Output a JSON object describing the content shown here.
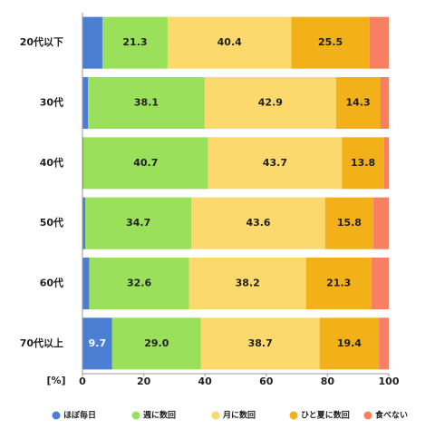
{
  "chart_data": {
    "type": "stacked-barh",
    "categories": [
      "20代以下",
      "30代",
      "40代",
      "50代",
      "60代",
      "70代以上"
    ],
    "series": [
      {
        "name": "ほぼ毎日",
        "color": "#4a7fd4",
        "values": [
          6.5,
          1.8,
          0.3,
          0.9,
          2.2,
          9.7
        ],
        "value_labels": [
          null,
          null,
          null,
          null,
          null,
          "9.7"
        ]
      },
      {
        "name": "週に数回",
        "color": "#9be05a",
        "values": [
          21.3,
          38.1,
          40.7,
          34.7,
          32.6,
          29.0
        ],
        "value_labels": [
          "21.3",
          "38.1",
          "40.7",
          "34.7",
          "32.6",
          "29.0"
        ]
      },
      {
        "name": "月に数回",
        "color": "#fcd96c",
        "values": [
          40.4,
          42.9,
          43.7,
          43.6,
          38.2,
          38.7
        ],
        "value_labels": [
          "40.4",
          "42.9",
          "43.7",
          "43.6",
          "38.2",
          "38.7"
        ]
      },
      {
        "name": "ひと夏に数回",
        "color": "#f2b118",
        "values": [
          25.5,
          14.3,
          13.8,
          15.8,
          21.3,
          19.4
        ],
        "value_labels": [
          "25.5",
          "14.3",
          "13.8",
          "15.8",
          "21.3",
          "19.4"
        ]
      },
      {
        "name": "食べない",
        "color": "#f77f62",
        "values": [
          6.3,
          2.9,
          1.5,
          5.0,
          5.7,
          3.2
        ],
        "value_labels": [
          null,
          null,
          null,
          null,
          null,
          null
        ]
      }
    ],
    "x_label": "[%]",
    "xlim": [
      0,
      100
    ],
    "xticks": [
      0,
      20,
      40,
      60,
      80,
      100
    ]
  }
}
